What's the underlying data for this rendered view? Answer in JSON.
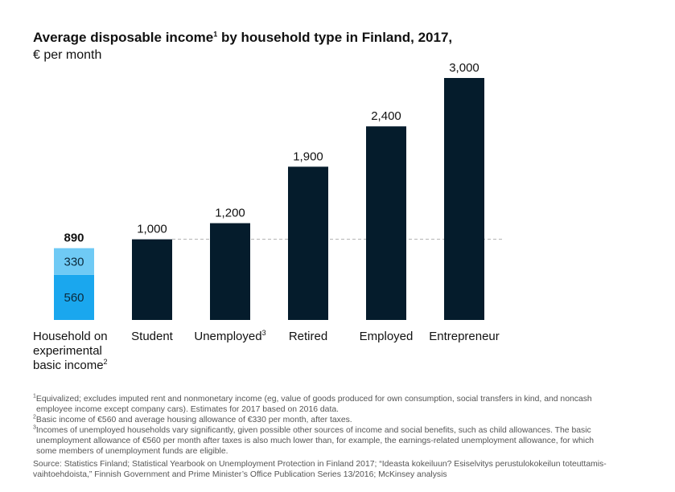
{
  "title": "Average disposable income",
  "title_sup": "1",
  "title_suffix": " by household type in Finland, 2017,",
  "subtitle": "€ per month",
  "chart_data": {
    "type": "bar",
    "unit": "€ per month",
    "categories": [
      "Household on experimental basic income",
      "Student",
      "Unemployed",
      "Retired",
      "Employed",
      "Entrepreneur"
    ],
    "category_lines": [
      [
        {
          "text": "Household on"
        },
        {
          "text": "experimental"
        },
        {
          "text": "basic income",
          "sup": "2"
        }
      ],
      [
        {
          "text": "Student"
        }
      ],
      [
        {
          "text": "Unemployed",
          "sup": "3"
        }
      ],
      [
        {
          "text": "Retired"
        }
      ],
      [
        {
          "text": "Employed"
        }
      ],
      [
        {
          "text": "Entrepreneur"
        }
      ]
    ],
    "values": [
      890,
      1000,
      1200,
      1900,
      2400,
      3000
    ],
    "value_labels": [
      "890",
      "1,000",
      "1,200",
      "1,900",
      "2,400",
      "3,000"
    ],
    "stacked_first_bar": [
      {
        "name": "Basic income",
        "value": 560,
        "label": "560",
        "color": "#1aa7ee"
      },
      {
        "name": "Housing allowance",
        "value": 330,
        "label": "330",
        "color": "#6fcaf5"
      }
    ],
    "reference_line": 1000,
    "ylim": [
      0,
      3000
    ],
    "colors": {
      "bar": "#051c2c",
      "reference_line": "#b0b0b0"
    }
  },
  "footnotes": {
    "n1": {
      "mark": "1",
      "line1": "Equivalized; excludes imputed rent and nonmonetary income (eg, value of goods produced for own consumption, social transfers in kind, and noncash",
      "line2": "employee income except company cars). Estimates for 2017 based on 2016 data."
    },
    "n2": {
      "mark": "2",
      "line1": "Basic income of €560 and average housing allowance of €330 per month, after taxes."
    },
    "n3": {
      "mark": "3",
      "line1": "Incomes of unemployed households vary significantly, given possible other sources of income and social benefits, such as child allowances. The basic",
      "line2": "unemployment allowance of €560 per month after taxes is also much lower than, for example, the earnings-related unemployment allowance, for which",
      "line3": "some members of unemployment funds are eligible."
    },
    "source": {
      "line1": "Source: Statistics Finland; Statistical Yearbook on Unemployment Protection in Finland 2017; “Ideasta kokeiluun? Esiselvitys perustulokokeilun toteuttamis-",
      "line2": "vaihtoehdoista,” Finnish Government and Prime Minister’s Office Publication Series 13/2016; McKinsey analysis"
    }
  }
}
